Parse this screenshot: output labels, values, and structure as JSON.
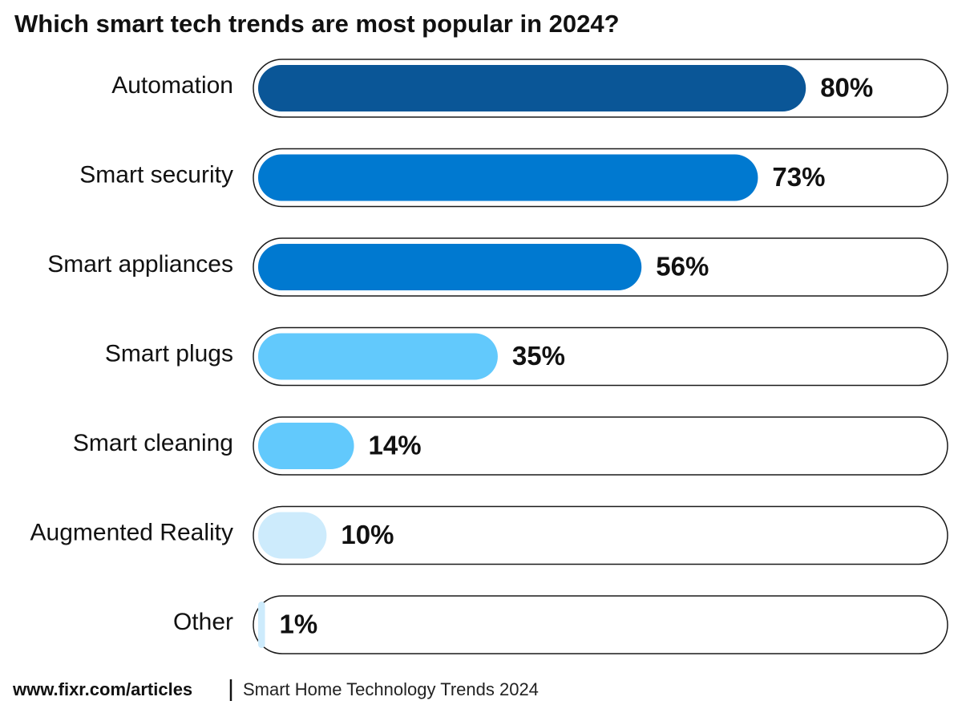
{
  "chart_data": {
    "type": "bar",
    "orientation": "horizontal",
    "title": "Which smart tech trends are most popular in 2024?",
    "categories": [
      "Automation",
      "Smart security",
      "Smart appliances",
      "Smart plugs",
      "Smart cleaning",
      "Augmented Reality",
      "Other"
    ],
    "values": [
      80,
      73,
      56,
      35,
      14,
      10,
      1
    ],
    "value_labels": [
      "80%",
      "73%",
      "56%",
      "35%",
      "14%",
      "10%",
      "1%"
    ],
    "colors": [
      "#0a5697",
      "#0079d0",
      "#0079d0",
      "#62c9fc",
      "#62c9fc",
      "#cdebfc",
      "#cdebfc"
    ],
    "xlim": [
      0,
      100
    ],
    "source": "www.fixr.com/articles",
    "note": "Smart Home Technology Trends 2024"
  }
}
